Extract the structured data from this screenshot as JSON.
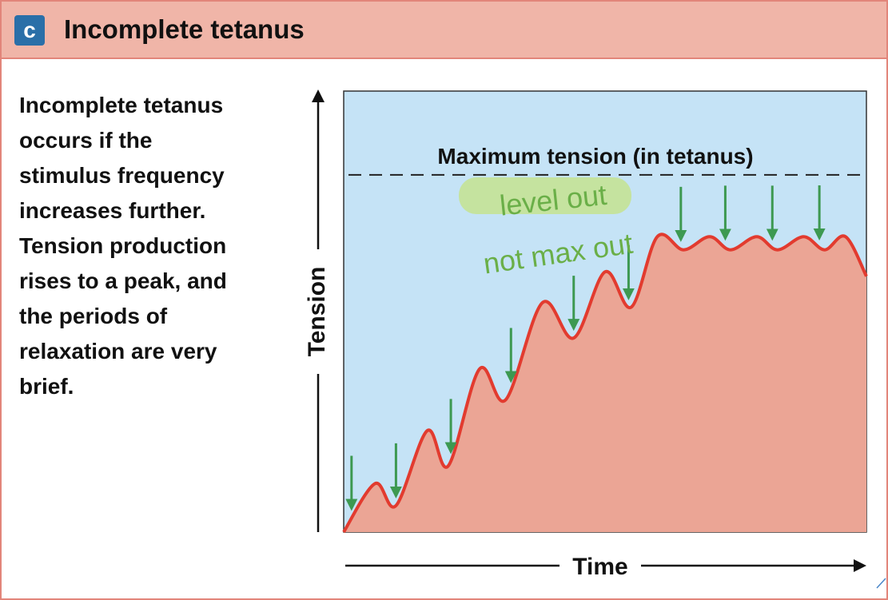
{
  "header": {
    "badge": "c",
    "title": "Incomplete tetanus",
    "badge_color": "#2a6fa8",
    "background_color": "#f0b5a8",
    "border_color": "#e2857a"
  },
  "description": "Incomplete tetanus\noccurs if the\nstimulus frequency\nincreases further.\nTension production\nrises to a peak, and\nthe periods of\nrelaxation are very\nbrief.",
  "annotations": {
    "line1": "level out",
    "line2": "not max out",
    "ink_color": "#6aaf48",
    "highlight_color": "#c4e38f"
  },
  "chart_data": {
    "type": "area",
    "title": "",
    "xlabel": "Time",
    "ylabel": "Tension",
    "xlim": [
      0,
      1
    ],
    "ylim": [
      0,
      1
    ],
    "grid": false,
    "legend": "none",
    "reference_line": {
      "label": "Maximum tension (in tetanus)",
      "y": 0.81,
      "style": "dashed"
    },
    "series": [
      {
        "values": [
          [
            0.0,
            0.0
          ],
          [
            0.06,
            0.11
          ],
          [
            0.1,
            0.06
          ],
          [
            0.16,
            0.23
          ],
          [
            0.2,
            0.15
          ],
          [
            0.26,
            0.37
          ],
          [
            0.31,
            0.3
          ],
          [
            0.38,
            0.52
          ],
          [
            0.44,
            0.44
          ],
          [
            0.5,
            0.59
          ],
          [
            0.55,
            0.51
          ],
          [
            0.6,
            0.67
          ],
          [
            0.65,
            0.64
          ],
          [
            0.7,
            0.67
          ],
          [
            0.74,
            0.64
          ],
          [
            0.79,
            0.67
          ],
          [
            0.83,
            0.64
          ],
          [
            0.88,
            0.67
          ],
          [
            0.92,
            0.64
          ],
          [
            0.96,
            0.67
          ],
          [
            1.0,
            0.58
          ]
        ]
      }
    ],
    "stimuli_x": [
      0.015,
      0.1,
      0.205,
      0.32,
      0.44,
      0.545,
      0.645,
      0.73,
      0.82,
      0.91
    ],
    "colors": {
      "background": "#c5e3f6",
      "fill": "#eba595",
      "line": "#e23b2f",
      "arrow": "#3d9951",
      "axis": "#111111"
    }
  }
}
